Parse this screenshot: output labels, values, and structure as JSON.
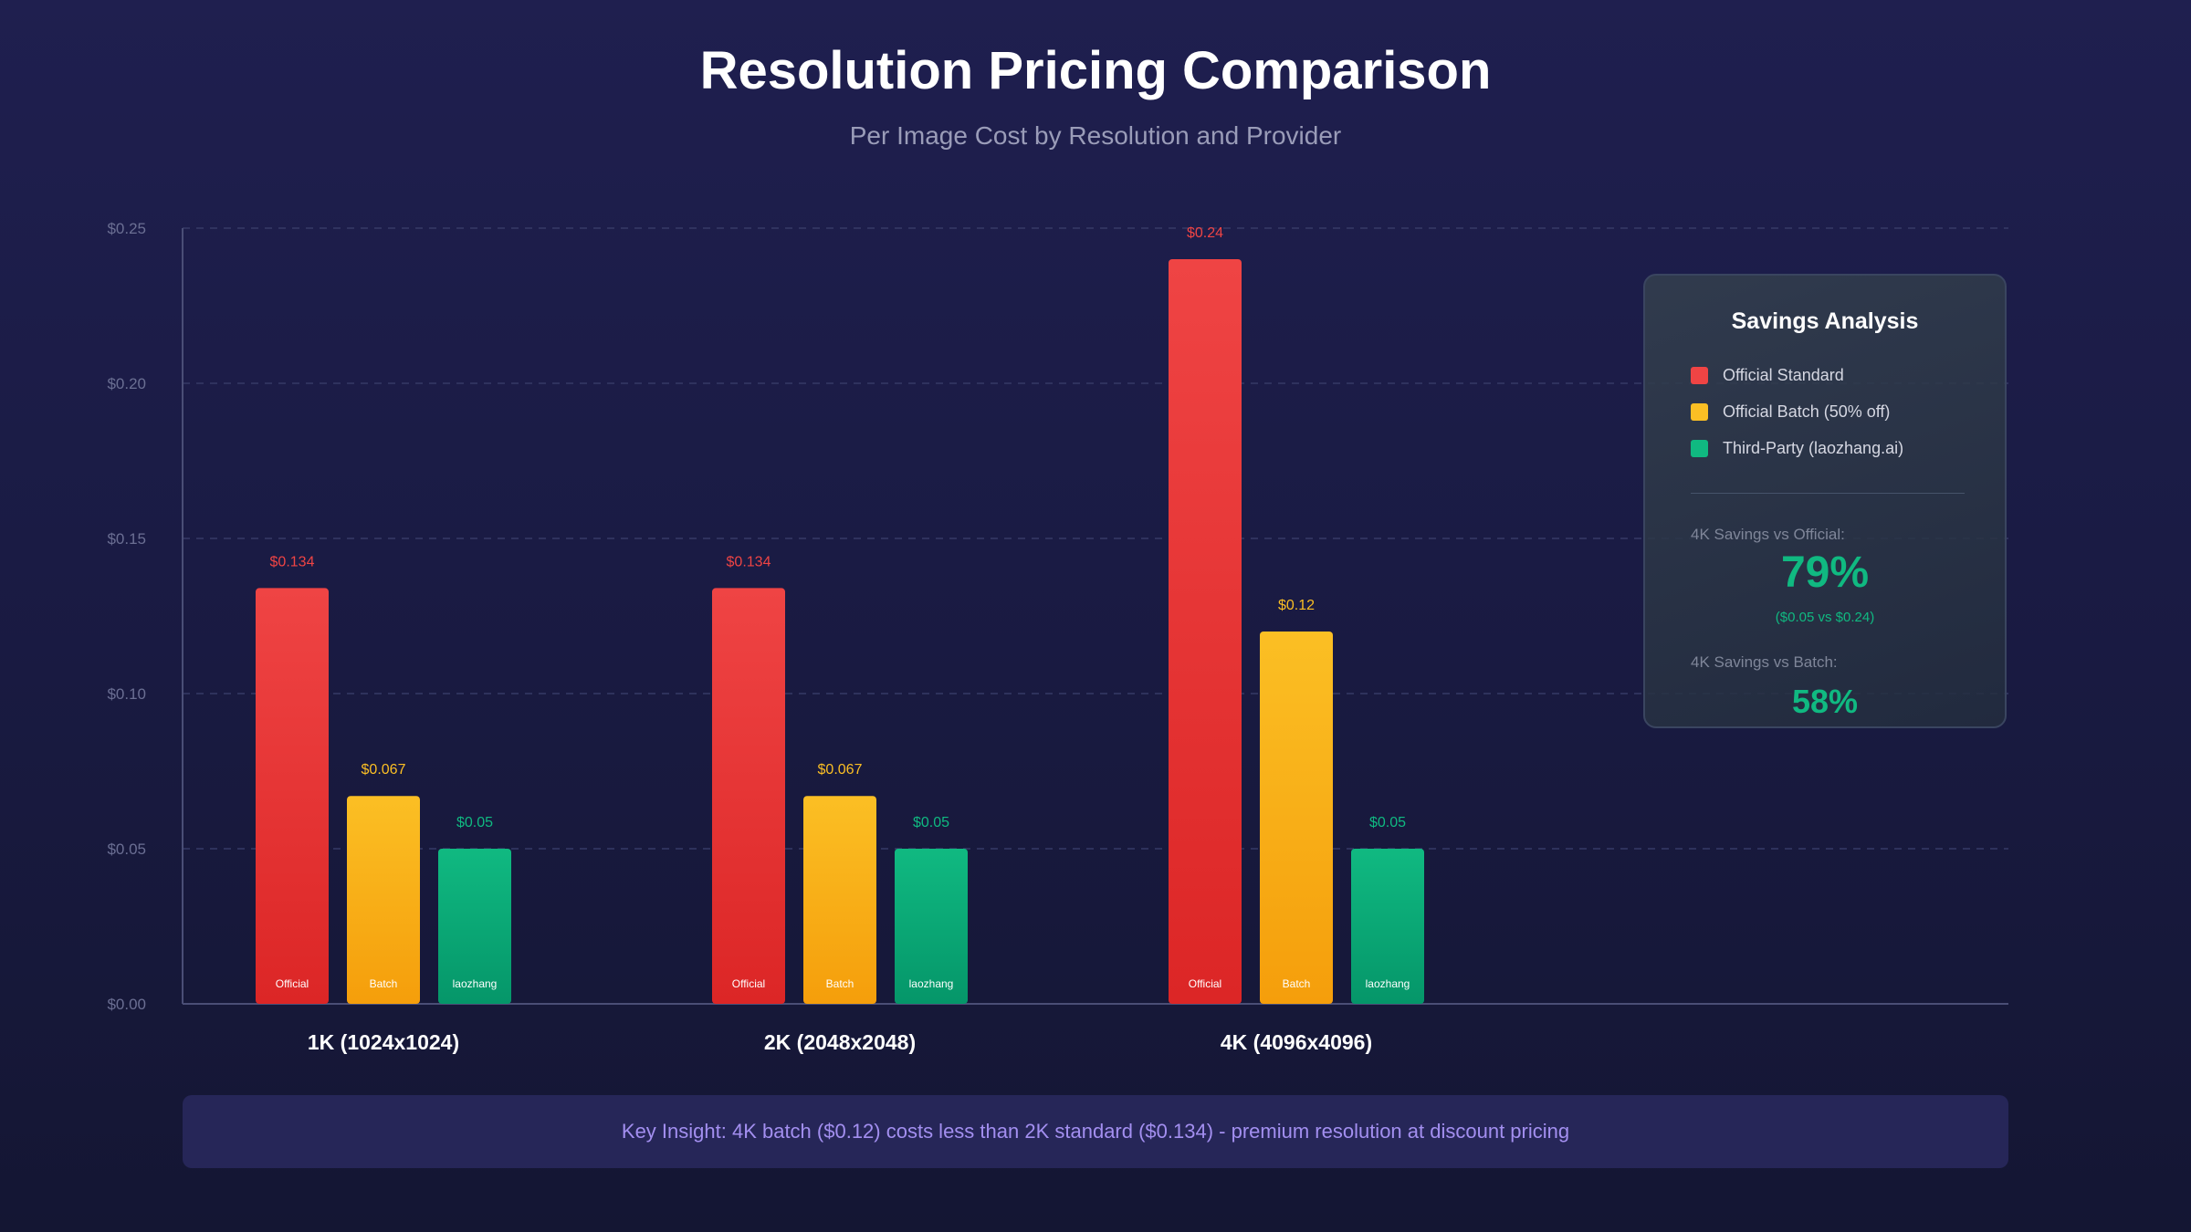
{
  "header": {
    "title": "Resolution Pricing Comparison",
    "subtitle": "Per Image Cost by Resolution and Provider"
  },
  "chart_data": {
    "type": "bar",
    "title": "Resolution Pricing Comparison",
    "subtitle": "Per Image Cost by Resolution and Provider",
    "categories": [
      "1K (1024x1024)",
      "2K (2048x2048)",
      "4K (4096x4096)"
    ],
    "series": [
      {
        "name": "Official Standard",
        "bar_label": "Official",
        "color": "#ef4444",
        "color_dark": "#dc2626",
        "values": [
          0.134,
          0.134,
          0.24
        ],
        "value_labels": [
          "$0.134",
          "$0.134",
          "$0.24"
        ]
      },
      {
        "name": "Official Batch (50% off)",
        "bar_label": "Batch",
        "color": "#fbbf24",
        "color_dark": "#f59e0b",
        "values": [
          0.067,
          0.067,
          0.12
        ],
        "value_labels": [
          "$0.067",
          "$0.067",
          "$0.12"
        ]
      },
      {
        "name": "Third-Party (laozhang.ai)",
        "bar_label": "laozhang",
        "color": "#10b981",
        "color_dark": "#059669",
        "values": [
          0.05,
          0.05,
          0.05
        ],
        "value_labels": [
          "$0.05",
          "$0.05",
          "$0.05"
        ]
      }
    ],
    "ylim": [
      0,
      0.25
    ],
    "yticks": [
      0,
      0.05,
      0.1,
      0.15,
      0.2,
      0.25
    ],
    "ytick_labels": [
      "$0.00",
      "$0.05",
      "$0.10",
      "$0.15",
      "$0.20",
      "$0.25"
    ],
    "grid": true,
    "legend_position": "top-right"
  },
  "savings": {
    "title": "Savings Analysis",
    "official_label": "4K Savings vs Official:",
    "official_value": "79%",
    "official_detail": "($0.05 vs $0.24)",
    "batch_label": "4K Savings vs Batch:",
    "batch_value": "58%"
  },
  "insight": {
    "text": "Key Insight: 4K batch ($0.12) costs less than 2K standard ($0.134) - premium resolution at discount pricing"
  }
}
